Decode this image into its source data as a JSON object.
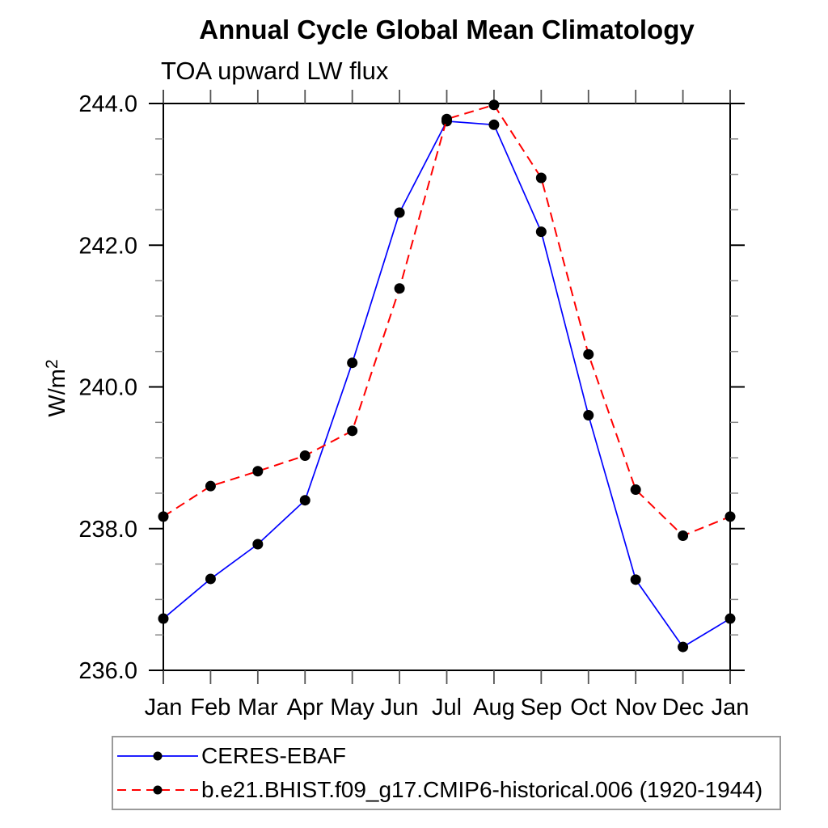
{
  "title": "Annual Cycle Global Mean Climatology",
  "subtitle": "TOA upward LW flux",
  "ylabel": {
    "base": "W/m",
    "exponent": "2"
  },
  "colors": {
    "obs_line": "#0000ff",
    "model_line": "#ff0000",
    "marker": "#000000",
    "axis": "#000000",
    "minor_tick": "#888888",
    "month_tick": "#555555",
    "legend_border": "#9a9a9a"
  },
  "legend": {
    "items": [
      {
        "label": "CERES-EBAF"
      },
      {
        "label": "b.e21.BHIST.f09_g17.CMIP6-historical.006 (1920-1944)"
      }
    ]
  },
  "chart_data": {
    "type": "line",
    "title": "Annual Cycle Global Mean Climatology",
    "subtitle": "TOA upward LW flux",
    "ylabel": "W/m²",
    "xlabel": "",
    "grid": false,
    "legend_position": "bottom-left",
    "categories": [
      "Jan",
      "Feb",
      "Mar",
      "Apr",
      "May",
      "Jun",
      "Jul",
      "Aug",
      "Sep",
      "Oct",
      "Nov",
      "Dec",
      "Jan"
    ],
    "series": [
      {
        "name": "CERES-EBAF",
        "color": "#0000ff",
        "style": "solid",
        "marker": "black-dot",
        "values": [
          236.73,
          237.29,
          237.78,
          238.4,
          240.34,
          242.46,
          243.75,
          243.7,
          242.19,
          239.6,
          237.28,
          236.33,
          236.73
        ]
      },
      {
        "name": "b.e21.BHIST.f09_g17.CMIP6-historical.006 (1920-1944)",
        "color": "#ff0000",
        "style": "dashed",
        "marker": "black-dot",
        "values": [
          238.17,
          238.6,
          238.81,
          239.03,
          239.38,
          241.39,
          243.78,
          243.98,
          242.95,
          240.46,
          238.55,
          237.9,
          238.17
        ]
      }
    ],
    "ylim": [
      236.0,
      244.0
    ],
    "yticks": [
      236.0,
      238.0,
      240.0,
      242.0,
      244.0
    ],
    "ytick_labels": [
      "236.0",
      "238.0",
      "240.0",
      "242.0",
      "244.0"
    ],
    "ytick_minor_step": 0.5,
    "marker_color": "#000000"
  }
}
